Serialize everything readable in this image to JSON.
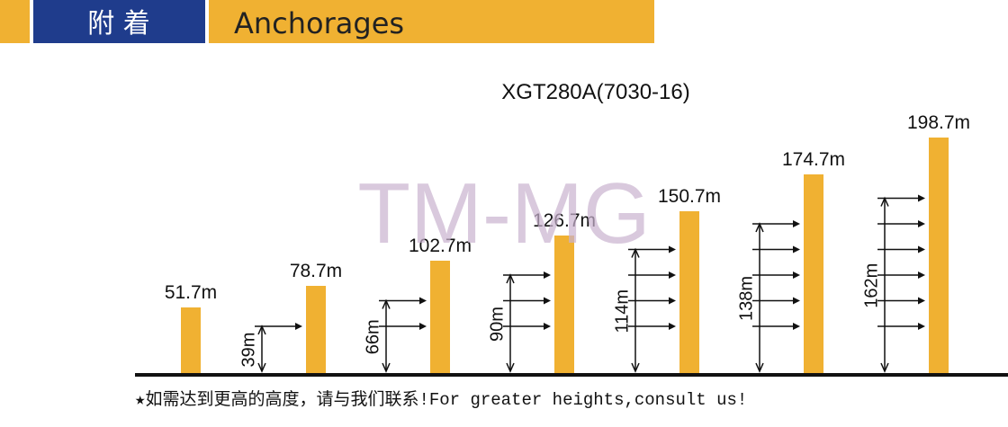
{
  "header": {
    "title_cn": "附 着",
    "title_en": "Anchorages"
  },
  "model": "XGT280A(7030-16)",
  "watermark": "TM-MG",
  "towers": [
    {
      "height": "51.7m",
      "anchor_height": null
    },
    {
      "height": "78.7m",
      "anchor_height": "39m"
    },
    {
      "height": "102.7m",
      "anchor_height": "66m"
    },
    {
      "height": "126.7m",
      "anchor_height": "90m"
    },
    {
      "height": "150.7m",
      "anchor_height": "114m"
    },
    {
      "height": "174.7m",
      "anchor_height": "138m"
    },
    {
      "height": "198.7m",
      "anchor_height": "162m"
    }
  ],
  "footnote": "★如需达到更高的高度，请与我们联系!For greater heights,consult us!"
}
